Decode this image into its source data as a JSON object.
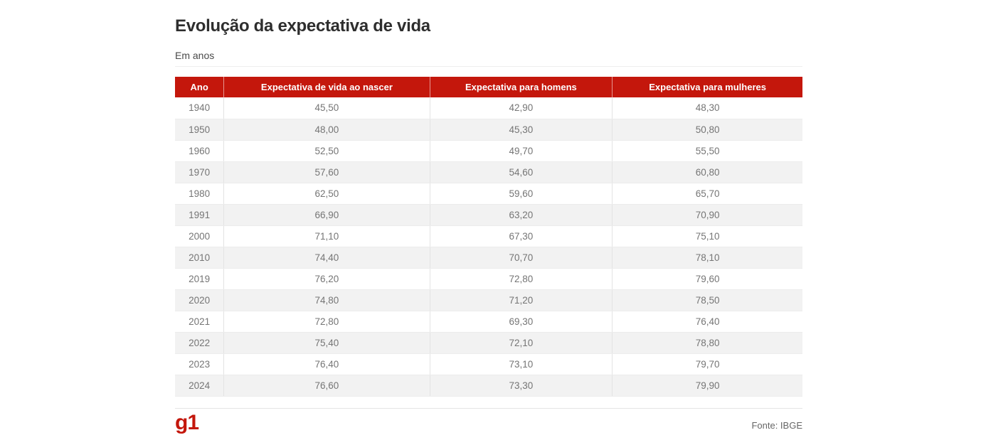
{
  "page": {
    "title": "Evolução da expectativa de vida",
    "subtitle": "Em anos",
    "source_label": "Fonte: IBGE",
    "brand_logo_text": "g1"
  },
  "colors": {
    "accent_red": "#c4170c",
    "header_text": "#ffffff",
    "row_stripe": "#f2f2f2",
    "body_text": "#757575",
    "title_text": "#2e2e2e"
  },
  "table": {
    "columns": [
      "Ano",
      "Expectativa de vida ao nascer",
      "Expectativa para homens",
      "Expectativa para mulheres"
    ],
    "rows": [
      [
        "1940",
        "45,50",
        "42,90",
        "48,30"
      ],
      [
        "1950",
        "48,00",
        "45,30",
        "50,80"
      ],
      [
        "1960",
        "52,50",
        "49,70",
        "55,50"
      ],
      [
        "1970",
        "57,60",
        "54,60",
        "60,80"
      ],
      [
        "1980",
        "62,50",
        "59,60",
        "65,70"
      ],
      [
        "1991",
        "66,90",
        "63,20",
        "70,90"
      ],
      [
        "2000",
        "71,10",
        "67,30",
        "75,10"
      ],
      [
        "2010",
        "74,40",
        "70,70",
        "78,10"
      ],
      [
        "2019",
        "76,20",
        "72,80",
        "79,60"
      ],
      [
        "2020",
        "74,80",
        "71,20",
        "78,50"
      ],
      [
        "2021",
        "72,80",
        "69,30",
        "76,40"
      ],
      [
        "2022",
        "75,40",
        "72,10",
        "78,80"
      ],
      [
        "2023",
        "76,40",
        "73,10",
        "79,70"
      ],
      [
        "2024",
        "76,60",
        "73,30",
        "79,90"
      ]
    ]
  },
  "chart_data": {
    "type": "table",
    "title": "Evolução da expectativa de vida",
    "subtitle": "Em anos",
    "source": "Fonte: IBGE",
    "categories": [
      1940,
      1950,
      1960,
      1970,
      1980,
      1991,
      2000,
      2010,
      2019,
      2020,
      2021,
      2022,
      2023,
      2024
    ],
    "series": [
      {
        "name": "Expectativa de vida ao nascer",
        "values": [
          45.5,
          48.0,
          52.5,
          57.6,
          62.5,
          66.9,
          71.1,
          74.4,
          76.2,
          74.8,
          72.8,
          75.4,
          76.4,
          76.6
        ]
      },
      {
        "name": "Expectativa para homens",
        "values": [
          42.9,
          45.3,
          49.7,
          54.6,
          59.6,
          63.2,
          67.3,
          70.7,
          72.8,
          71.2,
          69.3,
          72.1,
          73.1,
          73.3
        ]
      },
      {
        "name": "Expectativa para mulheres",
        "values": [
          48.3,
          50.8,
          55.5,
          60.8,
          65.7,
          70.9,
          75.1,
          78.1,
          79.6,
          78.5,
          76.4,
          78.8,
          79.7,
          79.9
        ]
      }
    ]
  }
}
